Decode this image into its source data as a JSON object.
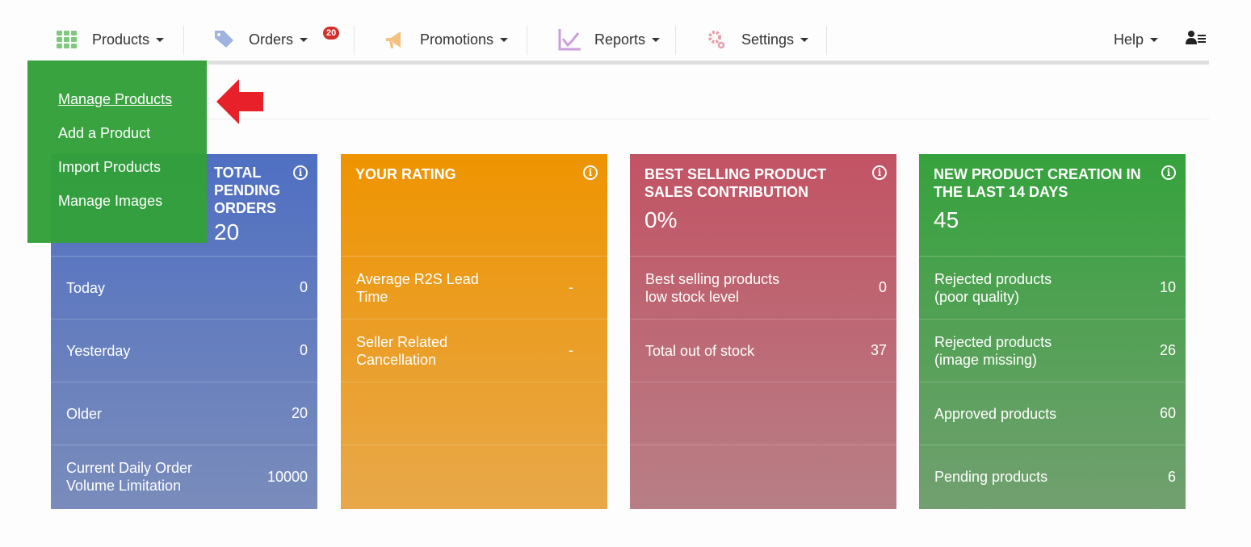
{
  "nav": {
    "items": [
      {
        "label": "Products",
        "icon": "grid-icon"
      },
      {
        "label": "Orders",
        "icon": "tag-icon",
        "badge": "20"
      },
      {
        "label": "Promotions",
        "icon": "megaphone-icon"
      },
      {
        "label": "Reports",
        "icon": "chart-icon"
      },
      {
        "label": "Settings",
        "icon": "gear-icon"
      }
    ],
    "help": "Help",
    "user_icon": "user-list-icon"
  },
  "dropdown": {
    "items": [
      "Manage Products",
      "Add a Product",
      "Import Products",
      "Manage Images"
    ]
  },
  "cards": [
    {
      "title": "TOTAL PENDING ORDERS",
      "value": "20",
      "color": "#4f6fc2",
      "rows": [
        [
          "Today",
          "0"
        ],
        [
          "Yesterday",
          "0"
        ],
        [
          "Older",
          "20"
        ],
        [
          "Current Daily Order Volume Limitation",
          "10000"
        ]
      ]
    },
    {
      "title": "YOUR RATING",
      "value": "",
      "color": "#ee9400",
      "rows": [
        [
          "Average R2S Lead Time",
          "-"
        ],
        [
          "Seller Related Cancellation",
          "-"
        ],
        [
          "",
          ""
        ],
        [
          "",
          ""
        ]
      ]
    },
    {
      "title": "BEST SELLING PRODUCT SALES CONTRIBUTION",
      "value": "0%",
      "color": "#c25364",
      "rows": [
        [
          "Best selling products low stock level",
          "0"
        ],
        [
          "Total out of stock",
          "37"
        ],
        [
          "",
          ""
        ],
        [
          "",
          ""
        ]
      ]
    },
    {
      "title": "NEW PRODUCT CREATION IN THE LAST 14 DAYS",
      "value": "45",
      "color": "#35a23c",
      "rows": [
        [
          "Rejected products (poor quality)",
          "10"
        ],
        [
          "Rejected products (image missing)",
          "26"
        ],
        [
          "Approved products",
          "60"
        ],
        [
          "Pending products",
          "6"
        ]
      ]
    }
  ]
}
